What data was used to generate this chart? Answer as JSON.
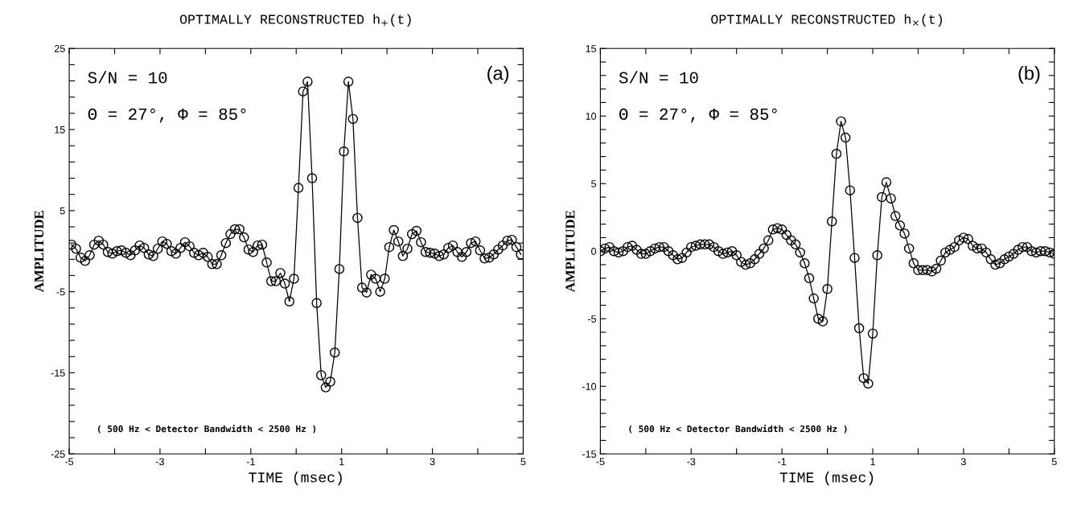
{
  "chart_data": [
    {
      "type": "line",
      "title": "OPTIMALLY RECONSTRUCTED h$_{+}$(t)",
      "xlabel": "TIME (msec)",
      "ylabel": "AMPLITUDE",
      "marker": "circle",
      "line_style": "solid",
      "grid": false,
      "legend": false,
      "annotations": [
        "S/N = 10",
        "Θ = 27°, Φ = 85°",
        "(a)",
        "( 500 Hz < Detector Bandwidth < 2500 Hz )"
      ],
      "xlim": [
        -5,
        5
      ],
      "ylim": [
        -25,
        25
      ],
      "xticks": [
        -5,
        {
          "value": -4,
          "label": null
        },
        -3,
        {
          "value": -2,
          "label": null
        },
        -1,
        {
          "value": 0,
          "label": null
        },
        1,
        {
          "value": 2,
          "label": null
        },
        3,
        {
          "value": 4,
          "label": null
        },
        5
      ],
      "yticks": [
        -25,
        {
          "value": -23,
          "label": null
        },
        {
          "value": -21,
          "label": null
        },
        {
          "value": -19,
          "label": null
        },
        {
          "value": -17,
          "label": null
        },
        -15,
        {
          "value": -13,
          "label": null
        },
        {
          "value": -11,
          "label": null
        },
        {
          "value": -9,
          "label": null
        },
        {
          "value": -7,
          "label": null
        },
        -5,
        {
          "value": -3,
          "label": null
        },
        {
          "value": -1,
          "label": null
        },
        {
          "value": 1,
          "label": null
        },
        {
          "value": 3,
          "label": null
        },
        5,
        {
          "value": 7,
          "label": null
        },
        {
          "value": 9,
          "label": null
        },
        {
          "value": 11,
          "label": null
        },
        {
          "value": 13,
          "label": null
        },
        15,
        {
          "value": 17,
          "label": null
        },
        {
          "value": 19,
          "label": null
        },
        {
          "value": 21,
          "label": null
        },
        {
          "value": 23,
          "label": null
        },
        25
      ],
      "series": [
        {
          "color": "#000000",
          "x": [
            -4.95,
            -4.85,
            -4.75,
            -4.65,
            -4.55,
            -4.45,
            -4.35,
            -4.25,
            -4.15,
            -4.05,
            -3.95,
            -3.85,
            -3.75,
            -3.65,
            -3.55,
            -3.45,
            -3.35,
            -3.25,
            -3.15,
            -3.05,
            -2.95,
            -2.85,
            -2.75,
            -2.65,
            -2.55,
            -2.45,
            -2.35,
            -2.25,
            -2.15,
            -2.05,
            -1.95,
            -1.85,
            -1.75,
            -1.65,
            -1.55,
            -1.45,
            -1.35,
            -1.25,
            -1.15,
            -1.05,
            -0.95,
            -0.85,
            -0.75,
            -0.65,
            -0.55,
            -0.45,
            -0.35,
            -0.25,
            -0.15,
            -0.05,
            0.05,
            0.15,
            0.25,
            0.35,
            0.45,
            0.55,
            0.65,
            0.75,
            0.85,
            0.95,
            1.05,
            1.15,
            1.25,
            1.35,
            1.45,
            1.55,
            1.65,
            1.75,
            1.85,
            1.95,
            2.05,
            2.15,
            2.25,
            2.35,
            2.45,
            2.55,
            2.65,
            2.75,
            2.85,
            2.95,
            3.05,
            3.15,
            3.25,
            3.35,
            3.45,
            3.55,
            3.65,
            3.75,
            3.85,
            3.95,
            4.05,
            4.15,
            4.25,
            4.35,
            4.45,
            4.55,
            4.65,
            4.75,
            4.85,
            4.95
          ],
          "values": [
            0.8,
            0.3,
            -0.8,
            -1.2,
            -0.5,
            0.8,
            1.3,
            0.8,
            -0.1,
            -0.3,
            0.0,
            0.1,
            -0.2,
            -0.5,
            0.1,
            0.7,
            0.4,
            -0.4,
            -0.6,
            0.3,
            1.2,
            0.9,
            0.0,
            -0.3,
            0.4,
            1.1,
            0.6,
            -0.2,
            -0.5,
            -0.2,
            -0.7,
            -1.6,
            -1.6,
            -0.5,
            1.0,
            2.1,
            2.7,
            2.7,
            1.7,
            0.2,
            -0.1,
            0.7,
            0.8,
            -1.4,
            -3.7,
            -3.7,
            -2.7,
            -4.0,
            -6.2,
            -3.4,
            7.8,
            19.7,
            20.9,
            9.0,
            -6.4,
            -15.3,
            -16.8,
            -16.1,
            -12.5,
            -2.2,
            12.3,
            20.9,
            16.3,
            4.1,
            -4.5,
            -5.1,
            -2.9,
            -3.4,
            -5.0,
            -3.4,
            0.5,
            2.6,
            1.2,
            -0.6,
            0.3,
            2.1,
            2.5,
            1.1,
            -0.1,
            -0.2,
            -0.3,
            -0.6,
            -0.4,
            0.4,
            0.7,
            -0.1,
            -0.7,
            -0.1,
            1.0,
            1.2,
            0.1,
            -0.9,
            -0.8,
            -0.4,
            0.2,
            0.7,
            1.3,
            1.4,
            0.5,
            -0.4
          ]
        }
      ]
    },
    {
      "type": "line",
      "title": "OPTIMALLY RECONSTRUCTED h$_{×}$(t)",
      "xlabel": "TIME (msec)",
      "ylabel": "AMPLITUDE",
      "marker": "circle",
      "line_style": "solid",
      "grid": false,
      "legend": false,
      "annotations": [
        "S/N = 10",
        "Θ = 27°, Φ = 85°",
        "(b)",
        "( 500 Hz < Detector Bandwidth < 2500 Hz )"
      ],
      "xlim": [
        -5,
        5
      ],
      "ylim": [
        -15,
        15
      ],
      "xticks": [
        -5,
        {
          "value": -4,
          "label": null
        },
        -3,
        {
          "value": -2,
          "label": null
        },
        -1,
        {
          "value": 0,
          "label": null
        },
        1,
        {
          "value": 2,
          "label": null
        },
        3,
        {
          "value": 4,
          "label": null
        },
        5
      ],
      "yticks": [
        -15,
        {
          "value": -14,
          "label": null
        },
        {
          "value": -13,
          "label": null
        },
        {
          "value": -12,
          "label": null
        },
        {
          "value": -11,
          "label": null
        },
        -10,
        {
          "value": -9,
          "label": null
        },
        {
          "value": -8,
          "label": null
        },
        {
          "value": -7,
          "label": null
        },
        {
          "value": -6,
          "label": null
        },
        -5,
        {
          "value": -4,
          "label": null
        },
        {
          "value": -3,
          "label": null
        },
        {
          "value": -2,
          "label": null
        },
        {
          "value": -1,
          "label": null
        },
        0,
        {
          "value": 1,
          "label": null
        },
        {
          "value": 2,
          "label": null
        },
        {
          "value": 3,
          "label": null
        },
        {
          "value": 4,
          "label": null
        },
        5,
        {
          "value": 6,
          "label": null
        },
        {
          "value": 7,
          "label": null
        },
        {
          "value": 8,
          "label": null
        },
        {
          "value": 9,
          "label": null
        },
        10,
        {
          "value": 11,
          "label": null
        },
        {
          "value": 12,
          "label": null
        },
        {
          "value": 13,
          "label": null
        },
        {
          "value": 14,
          "label": null
        },
        15
      ],
      "series": [
        {
          "color": "#000000",
          "x": [
            -5.0,
            -4.9,
            -4.8,
            -4.7,
            -4.6,
            -4.5,
            -4.4,
            -4.3,
            -4.2,
            -4.1,
            -4.0,
            -3.9,
            -3.8,
            -3.7,
            -3.6,
            -3.5,
            -3.4,
            -3.3,
            -3.2,
            -3.1,
            -3.0,
            -2.9,
            -2.8,
            -2.7,
            -2.6,
            -2.5,
            -2.4,
            -2.3,
            -2.2,
            -2.1,
            -2.0,
            -1.9,
            -1.8,
            -1.7,
            -1.6,
            -1.5,
            -1.4,
            -1.3,
            -1.2,
            -1.1,
            -1.0,
            -0.9,
            -0.8,
            -0.7,
            -0.6,
            -0.5,
            -0.4,
            -0.3,
            -0.2,
            -0.1,
            0.0,
            0.1,
            0.2,
            0.3,
            0.4,
            0.5,
            0.6,
            0.7,
            0.8,
            0.9,
            1.0,
            1.1,
            1.2,
            1.3,
            1.4,
            1.5,
            1.6,
            1.7,
            1.8,
            1.9,
            2.0,
            2.1,
            2.2,
            2.3,
            2.4,
            2.5,
            2.6,
            2.7,
            2.8,
            2.9,
            3.0,
            3.1,
            3.2,
            3.3,
            3.4,
            3.5,
            3.6,
            3.7,
            3.8,
            3.9,
            4.0,
            4.1,
            4.2,
            4.3,
            4.4,
            4.5,
            4.6,
            4.7,
            4.8,
            4.9,
            5.0
          ],
          "values": [
            0.0,
            0.2,
            0.3,
            0.0,
            -0.1,
            0.0,
            0.3,
            0.4,
            0.1,
            -0.2,
            -0.2,
            0.0,
            0.2,
            0.3,
            0.3,
            0.0,
            -0.3,
            -0.6,
            -0.5,
            -0.1,
            0.3,
            0.4,
            0.5,
            0.5,
            0.5,
            0.3,
            0.0,
            -0.2,
            -0.1,
            0.0,
            -0.3,
            -0.8,
            -1.0,
            -0.9,
            -0.6,
            -0.2,
            0.2,
            0.8,
            1.6,
            1.7,
            1.6,
            1.2,
            0.8,
            0.5,
            -0.1,
            -0.9,
            -2.0,
            -3.5,
            -5.0,
            -5.2,
            -2.8,
            2.2,
            7.2,
            9.6,
            8.4,
            4.5,
            -0.5,
            -5.7,
            -9.4,
            -9.8,
            -6.1,
            -0.3,
            4.0,
            5.1,
            3.9,
            2.6,
            1.9,
            1.3,
            0.2,
            -0.9,
            -1.4,
            -1.4,
            -1.4,
            -1.5,
            -1.3,
            -0.7,
            -0.1,
            0.1,
            0.3,
            0.8,
            1.0,
            0.9,
            0.4,
            0.2,
            0.2,
            -0.1,
            -0.6,
            -1.0,
            -0.9,
            -0.6,
            -0.4,
            -0.2,
            0.1,
            0.3,
            0.3,
            0.0,
            -0.1,
            0.0,
            0.0,
            -0.1,
            -0.2
          ]
        }
      ]
    }
  ]
}
